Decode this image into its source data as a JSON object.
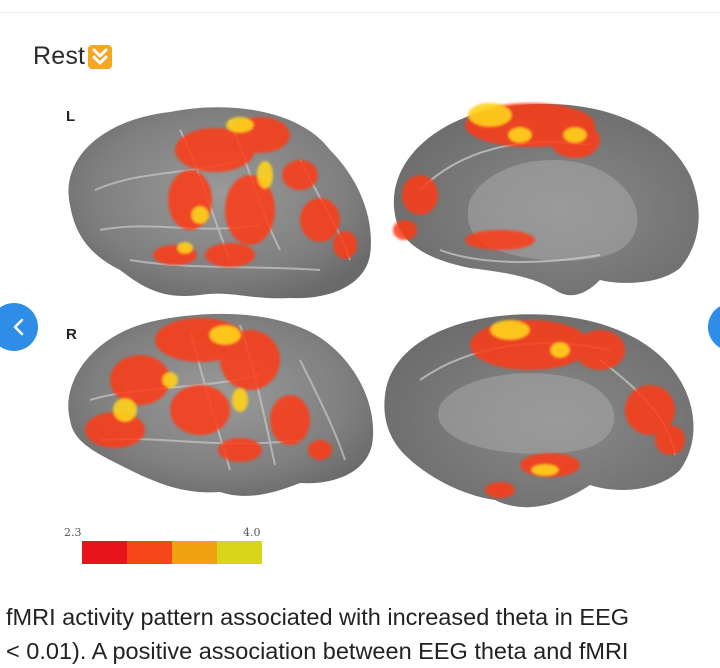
{
  "header": {
    "title": "Rest",
    "title_icon": "down-double-arrow-emoji"
  },
  "figure": {
    "hemisphere_labels": [
      "L",
      "R"
    ],
    "colorbar": {
      "min_label": "2.3",
      "max_label": "4.0",
      "colors": [
        "#e8141b",
        "#f5471a",
        "#f0a30f",
        "#d8d51a"
      ]
    }
  },
  "navigation": {
    "prev_icon": "chevron-left-icon",
    "next_icon": "chevron-right-icon"
  },
  "caption": {
    "line1": "fMRI activity pattern associated with increased theta in EEG",
    "line2": "< 0.01). A positive association between EEG theta and fMRI"
  },
  "colors": {
    "accent": "#2d8de7",
    "cortex": "#8d8d8d",
    "activation_hot": "#ff4b1a",
    "activation_warm": "#ffd21a"
  }
}
